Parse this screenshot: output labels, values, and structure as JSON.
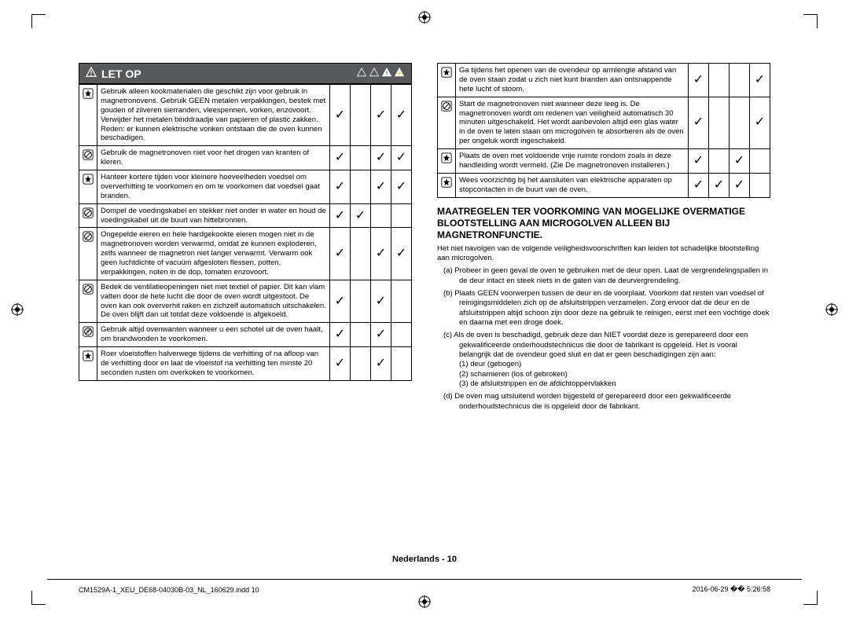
{
  "banner": {
    "title": "LET OP"
  },
  "leftRows": [
    {
      "icon": "star",
      "text": "Gebruik alleen kookmaterialen die geschikt zijn voor gebruik in magnetronovens. Gebruik GEEN metalen verpakkingen, bestek met gouden of zilveren sierranden, vleespennen, vorken, enzovoort.\nVerwijder het metalen binddraadje van papieren of plastic zakken.\nReden: er kunnen elektrische vonken ontstaan die de oven kunnen beschadigen.",
      "c": [
        true,
        false,
        true,
        true
      ]
    },
    {
      "icon": "slash",
      "text": "Gebruik de magnetronoven niet voor het drogen van kranten of kleren.",
      "c": [
        true,
        false,
        true,
        true
      ]
    },
    {
      "icon": "star",
      "text": "Hanteer kortere tijden voor kleinere hoeveelheden voedsel om oververhitting te voorkomen en om te voorkomen dat voedsel gaat branden.",
      "c": [
        true,
        false,
        true,
        true
      ]
    },
    {
      "icon": "slash",
      "text": "Dompel de voedingskabel en stekker niet onder in water en houd de voedingskabel uit de buurt van hittebronnen.",
      "c": [
        true,
        true,
        false,
        false
      ]
    },
    {
      "icon": "slash",
      "text": "Ongepelde eieren en hele hardgekookte eieren mogen niet in de magnetronoven worden verwarmd, omdat ze kunnen exploderen, zelfs wanneer de magnetron niet langer verwarmt. Verwarm ook geen luchtdichte of vacuüm afgesloten flessen, potten, verpakkingen, noten in de dop, tomaten enzovoort.",
      "c": [
        true,
        false,
        true,
        true
      ]
    },
    {
      "icon": "slash",
      "text": "Bedek de ventilatieopeningen niet met textiel of papier. Dit kan vlam vatten door de hete lucht die door de oven wordt uitgestoot. De oven kan ook oververhit raken en zichzelf automatisch uitschakelen. De oven blijft dan uit totdat deze voldoende is afgekoeld.",
      "c": [
        true,
        false,
        true,
        false
      ]
    },
    {
      "icon": "mitt",
      "text": "Gebruik altijd ovenwanten wanneer u een schotel uit de oven haalt, om brandwonden te voorkomen.",
      "c": [
        true,
        false,
        true,
        false
      ]
    },
    {
      "icon": "star",
      "text": "Roer vloeistoffen halverwege tijdens de verhitting of na afloop van de verhitting door en laat de vloeistof na verhitting ten minste 20 seconden rusten om overkoken te voorkomen.",
      "c": [
        true,
        false,
        true,
        false
      ]
    }
  ],
  "rightRows": [
    {
      "icon": "star",
      "text": "Ga tijdens het openen van de ovendeur op armlengte afstand van de oven staan zodat u zich niet kunt branden aan ontsnappende hete lucht of stoom.",
      "c": [
        true,
        false,
        false,
        true
      ]
    },
    {
      "icon": "slash",
      "text": "Start de magnetronoven niet wanneer deze leeg is. De magnetronoven wordt om redenen van veiligheid automatisch 30 minuten uitgeschakeld. Het wordt aanbevolen altijd een glas water in de oven te laten staan om microgolven te absorberen als de oven per ongeluk wordt ingeschakeld.",
      "c": [
        true,
        false,
        false,
        true
      ]
    },
    {
      "icon": "star",
      "text": "Plaats de oven met voldoende vrije ruimte rondom zoals in deze handleiding wordt vermeld. (Zie De magnetronoven installeren.)",
      "c": [
        true,
        false,
        true,
        false
      ]
    },
    {
      "icon": "star",
      "text": "Wees voorzichtig bij het aansluiten van elektrische apparaten op stopcontacten in de buurt van de oven.",
      "c": [
        true,
        true,
        true,
        false
      ]
    }
  ],
  "section": {
    "heading": "MAATREGELEN TER VOORKOMING VAN MOGELIJKE OVERMATIGE BLOOTSTELLING AAN MICROGOLVEN ALLEEN BIJ MAGNETRONFUNCTIE.",
    "intro": "Het niet navolgen van de volgende veiligheidsvoorschriften kan leiden tot schadelijke blootstelling aan microgolven.",
    "items": [
      "(a)  Probeer in geen geval de oven te gebruiken met de deur open. Laat de vergrendelingspallen in de deur intact en steek niets in de gaten van de deurvergrendeling.",
      "(b)  Plaats GEEN voorwerpen tussen de deur en de voorplaat. Voorkom dat resten van voedsel of reinigingsmiddelen zich op de afsluitstrippen verzamelen. Zorg ervoor dat de deur en de afsluitstrippen altijd schoon zijn door deze na gebruik te reinigen, eerst met een vochtige doek en daarna met een droge doek.",
      "(c)  Als de oven is beschadigd, gebruik deze dan NIET voordat deze is gerepareerd door een gekwalificeerde onderhoudstechnicus die door de fabrikant is opgeleid. Het is vooral belangrijk dat de ovendeur goed sluit en dat er geen beschadigingen zijn aan:"
    ],
    "sub": [
      "(1) deur (gebogen)",
      "(2) scharnieren (los of gebroken)",
      "(3) de afsluitstrippen en de afdichtoppervlakken"
    ],
    "last": "(d)  De oven mag uitsluitend worden bijgesteld of gerepareerd door een gekwalificeerde onderhoudstechnicus die is opgeleid door de fabrikant."
  },
  "footer": {
    "center": "Nederlands - 10",
    "file": "CM1529A-1_XEU_DE68-04030B-03_NL_160629.indd   10",
    "date": "2016-06-29   �� 5:26:58"
  },
  "glyphs": {
    "check": "✓"
  }
}
